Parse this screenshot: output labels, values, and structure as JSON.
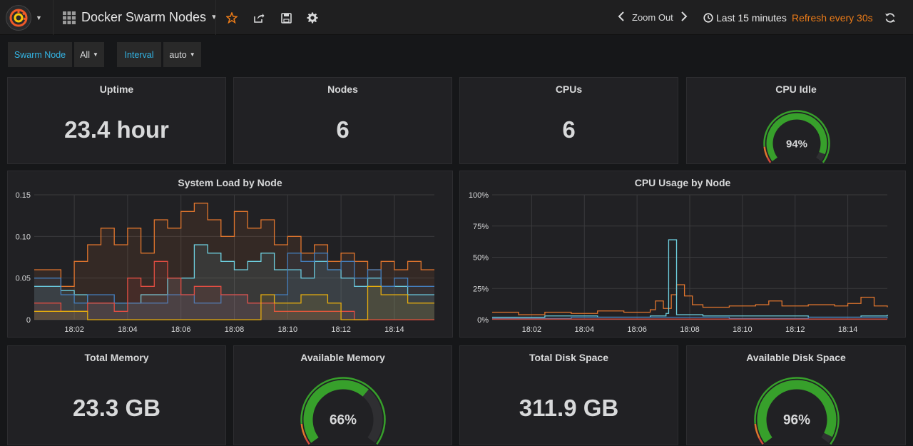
{
  "header": {
    "dashboard_title": "Docker Swarm Nodes",
    "zoom_out_label": "Zoom Out",
    "time_range": "Last 15 minutes",
    "refresh_label": "Refresh every 30s"
  },
  "variables": [
    {
      "label": "Swarm Node",
      "value": "All"
    },
    {
      "label": "Interval",
      "value": "auto"
    }
  ],
  "panels": {
    "uptime": {
      "title": "Uptime",
      "value": "23.4 hour"
    },
    "nodes": {
      "title": "Nodes",
      "value": "6"
    },
    "cpus": {
      "title": "CPUs",
      "value": "6"
    },
    "cpu_idle": {
      "title": "CPU Idle",
      "value": "94%",
      "fraction": 0.94
    },
    "total_memory": {
      "title": "Total Memory",
      "value": "23.3 GB"
    },
    "available_memory": {
      "title": "Available Memory",
      "value": "66%",
      "fraction": 0.66
    },
    "total_disk": {
      "title": "Total Disk Space",
      "value": "311.9 GB"
    },
    "available_disk": {
      "title": "Available Disk Space",
      "value": "96%",
      "fraction": 0.96
    }
  },
  "colors": {
    "accent": "#33b5e5",
    "refresh": "#eb7b18",
    "gauge_green": "#37a02b",
    "gauge_orange": "#e0752d",
    "gauge_red": "#d44a3a",
    "series": [
      "#e0752d",
      "#6ed0e0",
      "#447ebc",
      "#e24d42",
      "#e5ac0e",
      "#ef843c"
    ]
  },
  "chart_data": [
    {
      "type": "line",
      "title": "System Load by Node",
      "x_ticks": [
        "18:02",
        "18:04",
        "18:06",
        "18:08",
        "18:10",
        "18:12",
        "18:14"
      ],
      "x_range": [
        "18:00:30",
        "18:15:30"
      ],
      "y_ticks": [
        "0",
        "0.05",
        "0.10",
        "0.15"
      ],
      "ylim": [
        0,
        0.15
      ],
      "series": [
        {
          "values": [
            [
              0,
              0.06
            ],
            [
              1,
              0.04
            ],
            [
              1.5,
              0.07
            ],
            [
              2,
              0.09
            ],
            [
              2.5,
              0.11
            ],
            [
              3,
              0.09
            ],
            [
              3.5,
              0.11
            ],
            [
              4,
              0.08
            ],
            [
              4.5,
              0.12
            ],
            [
              5,
              0.11
            ],
            [
              5.5,
              0.13
            ],
            [
              6,
              0.14
            ],
            [
              6.5,
              0.12
            ],
            [
              7,
              0.1
            ],
            [
              7.5,
              0.13
            ],
            [
              8,
              0.11
            ],
            [
              8.5,
              0.12
            ],
            [
              9,
              0.09
            ],
            [
              9.5,
              0.1
            ],
            [
              10,
              0.08
            ],
            [
              10.5,
              0.09
            ],
            [
              11,
              0.07
            ],
            [
              11.5,
              0.08
            ],
            [
              12,
              0.07
            ],
            [
              12.5,
              0.06
            ],
            [
              13,
              0.07
            ],
            [
              13.5,
              0.06
            ],
            [
              14,
              0.07
            ],
            [
              14.5,
              0.06
            ],
            [
              15,
              0.06
            ]
          ]
        },
        {
          "values": [
            [
              0,
              0.04
            ],
            [
              1,
              0.035
            ],
            [
              1.5,
              0.03
            ],
            [
              2,
              0.02
            ],
            [
              3,
              0.02
            ],
            [
              4,
              0.03
            ],
            [
              5,
              0.05
            ],
            [
              6,
              0.09
            ],
            [
              6.5,
              0.08
            ],
            [
              7,
              0.07
            ],
            [
              7.5,
              0.06
            ],
            [
              8,
              0.07
            ],
            [
              8.5,
              0.08
            ],
            [
              9,
              0.06
            ],
            [
              10,
              0.05
            ],
            [
              10.5,
              0.07
            ],
            [
              11,
              0.06
            ],
            [
              11.5,
              0.05
            ],
            [
              12,
              0.04
            ],
            [
              12.5,
              0.05
            ],
            [
              13,
              0.04
            ],
            [
              14,
              0.03
            ],
            [
              15,
              0.03
            ]
          ]
        },
        {
          "values": [
            [
              0,
              0.05
            ],
            [
              1,
              0.03
            ],
            [
              1.5,
              0.02
            ],
            [
              2,
              0.03
            ],
            [
              3,
              0.02
            ],
            [
              4,
              0.02
            ],
            [
              5,
              0.03
            ],
            [
              6,
              0.02
            ],
            [
              7,
              0.03
            ],
            [
              8,
              0.02
            ],
            [
              9,
              0.03
            ],
            [
              9.5,
              0.08
            ],
            [
              10,
              0.07
            ],
            [
              10.5,
              0.08
            ],
            [
              11,
              0.06
            ],
            [
              11.5,
              0.07
            ],
            [
              12,
              0.05
            ],
            [
              12.5,
              0.06
            ],
            [
              13,
              0.04
            ],
            [
              13.5,
              0.05
            ],
            [
              14,
              0.04
            ],
            [
              15,
              0.04
            ]
          ]
        },
        {
          "values": [
            [
              0,
              0.02
            ],
            [
              1,
              0.01
            ],
            [
              2,
              0.02
            ],
            [
              3,
              0.01
            ],
            [
              3.5,
              0.05
            ],
            [
              4,
              0.04
            ],
            [
              4.5,
              0.07
            ],
            [
              5,
              0.05
            ],
            [
              5.5,
              0.03
            ],
            [
              6,
              0.04
            ],
            [
              7,
              0.03
            ],
            [
              8,
              0.02
            ],
            [
              9,
              0.01
            ],
            [
              10,
              0.01
            ],
            [
              11,
              0.01
            ],
            [
              12,
              0
            ],
            [
              15,
              0
            ]
          ]
        },
        {
          "values": [
            [
              0,
              0.01
            ],
            [
              1,
              0.01
            ],
            [
              2,
              0
            ],
            [
              4,
              0
            ],
            [
              6,
              0
            ],
            [
              8,
              0
            ],
            [
              8.5,
              0.03
            ],
            [
              9,
              0.02
            ],
            [
              10,
              0.03
            ],
            [
              11,
              0.02
            ],
            [
              11.5,
              0
            ],
            [
              12,
              0
            ],
            [
              12.5,
              0.04
            ],
            [
              13,
              0.03
            ],
            [
              14,
              0.02
            ],
            [
              15,
              0.02
            ]
          ]
        }
      ]
    },
    {
      "type": "line",
      "title": "CPU Usage by Node",
      "x_ticks": [
        "18:02",
        "18:04",
        "18:06",
        "18:08",
        "18:10",
        "18:12",
        "18:14"
      ],
      "x_range": [
        "18:00:30",
        "18:15:30"
      ],
      "y_ticks": [
        "0%",
        "25%",
        "50%",
        "75%",
        "100%"
      ],
      "ylim": [
        0,
        100
      ],
      "series": [
        {
          "values": [
            [
              0,
              6
            ],
            [
              1,
              4
            ],
            [
              2,
              6
            ],
            [
              3,
              5
            ],
            [
              4,
              7
            ],
            [
              5,
              6
            ],
            [
              6,
              8
            ],
            [
              6.2,
              15
            ],
            [
              6.5,
              9
            ],
            [
              6.8,
              20
            ],
            [
              7,
              28
            ],
            [
              7.3,
              19
            ],
            [
              7.6,
              12
            ],
            [
              8,
              10
            ],
            [
              9,
              11
            ],
            [
              10,
              12
            ],
            [
              10.5,
              15
            ],
            [
              11,
              11
            ],
            [
              12,
              12
            ],
            [
              13,
              11
            ],
            [
              13.5,
              13
            ],
            [
              14,
              18
            ],
            [
              14.5,
              11
            ],
            [
              15,
              10
            ]
          ]
        },
        {
          "values": [
            [
              0,
              2
            ],
            [
              2,
              3
            ],
            [
              4,
              2
            ],
            [
              6,
              3
            ],
            [
              6.6,
              5
            ],
            [
              6.7,
              64
            ],
            [
              6.9,
              64
            ],
            [
              7,
              4
            ],
            [
              8,
              3
            ],
            [
              10,
              3
            ],
            [
              12,
              2
            ],
            [
              14,
              3
            ],
            [
              15,
              4
            ]
          ]
        },
        {
          "values": [
            [
              0,
              1
            ],
            [
              3,
              2
            ],
            [
              6,
              2
            ],
            [
              9,
              1
            ],
            [
              12,
              2
            ],
            [
              15,
              1
            ]
          ]
        },
        {
          "values": [
            [
              0,
              0.5
            ],
            [
              15,
              0.5
            ]
          ]
        }
      ]
    }
  ]
}
